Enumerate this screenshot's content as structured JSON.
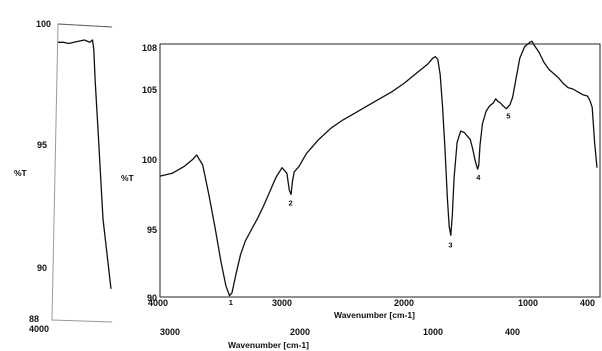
{
  "chart_data": [
    {
      "type": "line",
      "title": "",
      "xlabel": "Wavenumber [cm-1]",
      "ylabel": "%T",
      "xlim": [
        4000,
        400
      ],
      "ylim": [
        88,
        100
      ],
      "x_tick_labels": [
        "4000",
        "3000",
        "2000",
        "1000",
        "400"
      ],
      "y_tick_labels": [
        "88",
        "90",
        "95",
        "100"
      ],
      "series": [
        {
          "name": "",
          "x": [
            4000,
            3980,
            3960,
            3940,
            3920,
            3900,
            3880,
            3870,
            3865,
            3860,
            3850,
            3830,
            3800
          ],
          "y": [
            99.6,
            99.6,
            99.55,
            99.6,
            99.65,
            99.7,
            99.6,
            99.7,
            99.3,
            98.0,
            96.0,
            92.0,
            89.0
          ]
        }
      ]
    },
    {
      "type": "line",
      "title": "",
      "xlabel": "Wavenumber [cm-1]",
      "ylabel": "%T",
      "xlim": [
        4000,
        400
      ],
      "ylim": [
        90,
        108
      ],
      "x_tick_labels": [
        "4000",
        "3000",
        "2000",
        "1000",
        "400"
      ],
      "y_tick_labels": [
        "90",
        "95",
        "100",
        "105",
        "108"
      ],
      "peak_labels": [
        {
          "label": "1",
          "x": 3420,
          "y": 90.2
        },
        {
          "label": "2",
          "x": 2930,
          "y": 97.3
        },
        {
          "label": "3",
          "x": 1615,
          "y": 94.3
        },
        {
          "label": "4",
          "x": 1385,
          "y": 99.1
        },
        {
          "label": "5",
          "x": 1135,
          "y": 103.5
        }
      ],
      "series": [
        {
          "name": "",
          "x": [
            4000,
            3900,
            3800,
            3730,
            3700,
            3650,
            3600,
            3550,
            3500,
            3460,
            3430,
            3410,
            3380,
            3340,
            3300,
            3250,
            3200,
            3150,
            3100,
            3050,
            3000,
            2960,
            2940,
            2925,
            2915,
            2900,
            2860,
            2800,
            2700,
            2600,
            2500,
            2400,
            2300,
            2200,
            2100,
            2000,
            1900,
            1800,
            1760,
            1740,
            1720,
            1700,
            1680,
            1660,
            1640,
            1625,
            1612,
            1600,
            1585,
            1560,
            1530,
            1500,
            1470,
            1450,
            1430,
            1410,
            1390,
            1380,
            1370,
            1350,
            1320,
            1290,
            1260,
            1240,
            1220,
            1200,
            1180,
            1150,
            1120,
            1100,
            1070,
            1040,
            1000,
            960,
            940,
            920,
            880,
            840,
            800,
            760,
            720,
            680,
            640,
            600,
            560,
            520,
            480,
            460,
            440,
            420,
            400
          ],
          "y": [
            98.6,
            98.8,
            99.3,
            99.8,
            100.1,
            99.4,
            97.3,
            95.0,
            92.5,
            90.8,
            90.1,
            90.3,
            91.5,
            93.0,
            94.0,
            94.8,
            95.6,
            96.5,
            97.5,
            98.5,
            99.2,
            98.8,
            97.6,
            97.3,
            98.2,
            98.9,
            99.3,
            100.2,
            101.2,
            102.0,
            102.6,
            103.1,
            103.6,
            104.1,
            104.6,
            105.2,
            105.9,
            106.6,
            107.0,
            107.1,
            106.9,
            105.8,
            103.5,
            100.5,
            97.0,
            95.0,
            94.4,
            95.8,
            98.5,
            101.0,
            101.8,
            101.7,
            101.4,
            101.2,
            100.5,
            99.7,
            99.1,
            99.4,
            100.8,
            102.3,
            103.2,
            103.6,
            103.8,
            104.1,
            103.9,
            103.8,
            103.6,
            103.4,
            103.7,
            104.2,
            105.6,
            107.0,
            107.8,
            108.1,
            108.2,
            107.9,
            107.4,
            106.7,
            106.2,
            105.9,
            105.6,
            105.2,
            104.9,
            104.8,
            104.6,
            104.4,
            104.3,
            104.0,
            103.5,
            101.0,
            99.2
          ]
        }
      ]
    }
  ]
}
